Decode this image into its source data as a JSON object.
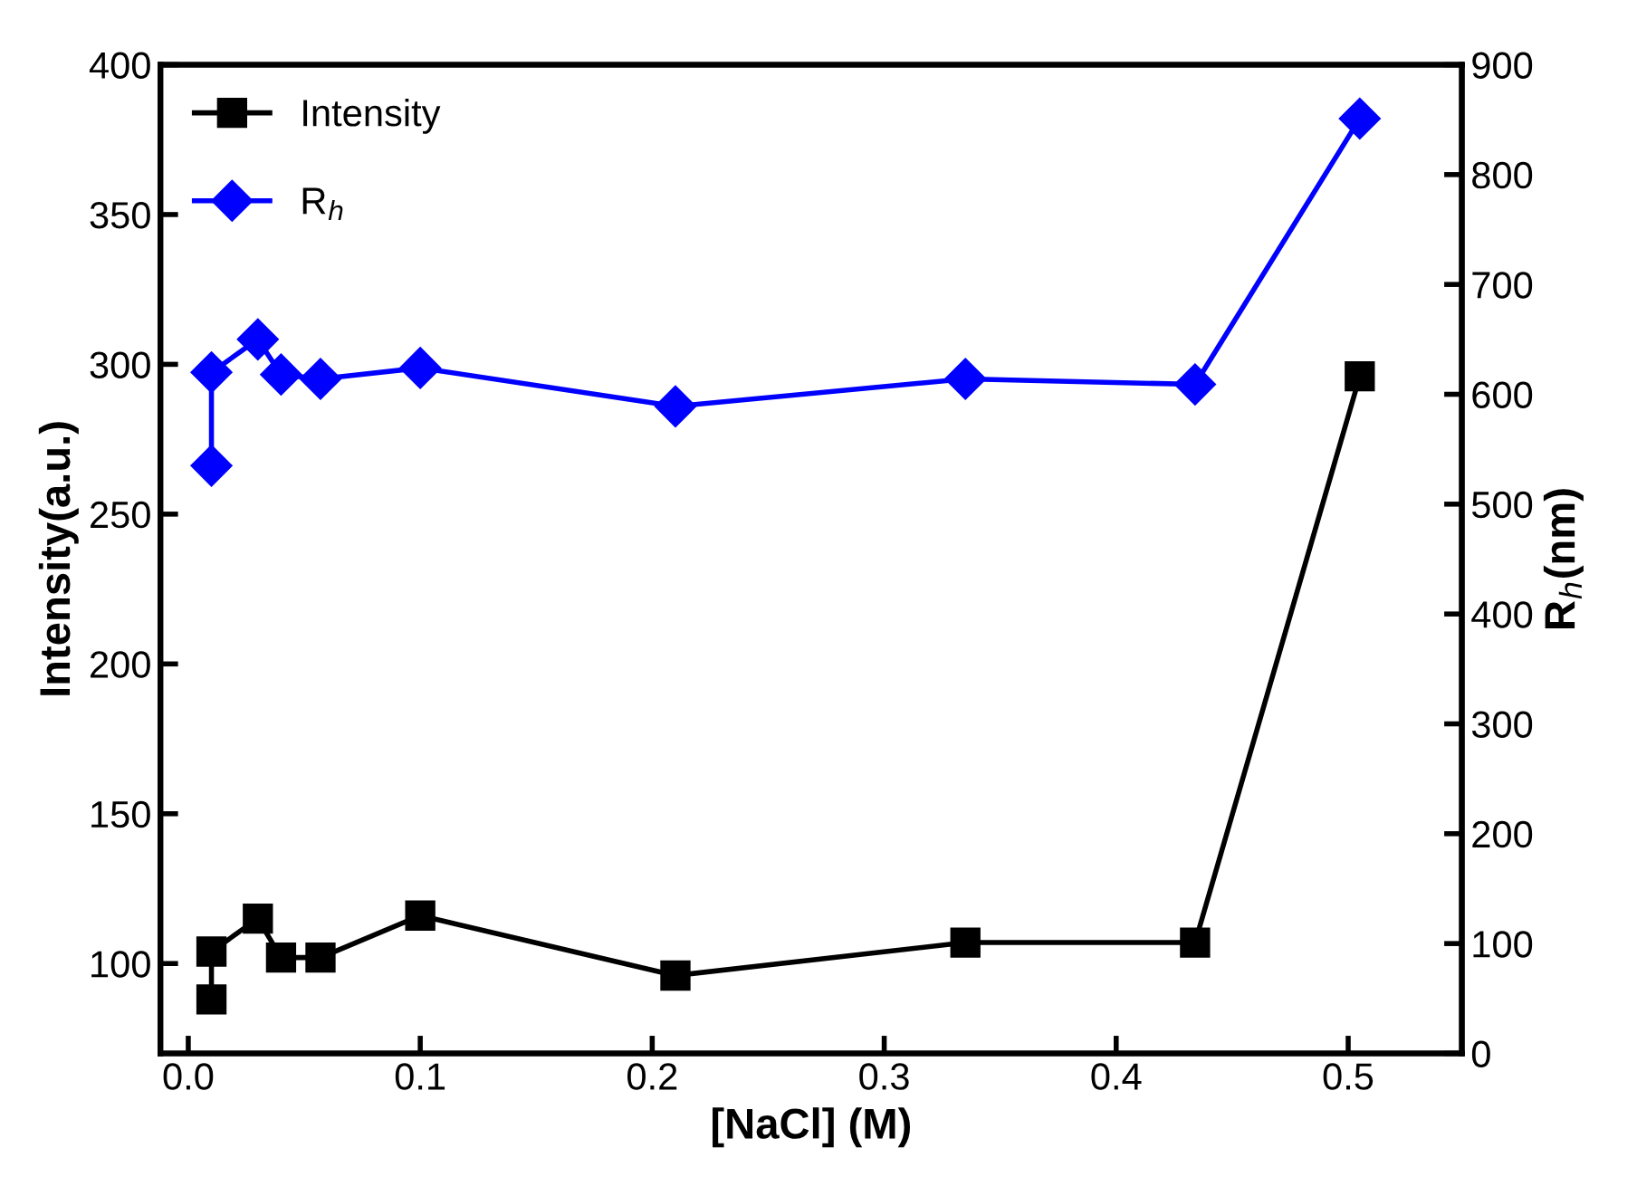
{
  "chart_data": {
    "type": "line",
    "xlabel": "[NaCl] (M)",
    "ylabel": "Intensity(a.u.)",
    "y2label": "R$_{h}$(nm)",
    "xlim": [
      -0.012,
      0.549
    ],
    "xticks": [
      {
        "value": 0,
        "label": "0.0"
      },
      0.1,
      0.2,
      0.3,
      0.4,
      0.5
    ],
    "ylim": [
      70,
      400
    ],
    "yticks": [
      100,
      150,
      200,
      250,
      300,
      350,
      400
    ],
    "y2lim": [
      0,
      900
    ],
    "y2ticks": [
      0,
      100,
      200,
      300,
      400,
      500,
      600,
      700,
      800,
      900
    ],
    "legend": "top left",
    "grid": false,
    "series": [
      {
        "name": "Intensity",
        "color": "#000000",
        "marker": "square",
        "x": [
          0.01,
          0.01,
          0.03,
          0.04,
          0.057,
          0.1,
          0.21,
          0.335,
          0.434,
          0.505
        ],
        "values": [
          88,
          104,
          115,
          102,
          102,
          116,
          96,
          107,
          107,
          296
        ]
      },
      {
        "name": "R$_{h}$",
        "color": "#0000ff",
        "marker": "diamond",
        "axis": "y2",
        "x": [
          0.01,
          0.01,
          0.03,
          0.04,
          0.057,
          0.1,
          0.21,
          0.335,
          0.434,
          0.505
        ],
        "values": [
          535,
          620,
          650,
          618,
          614,
          624,
          589,
          614,
          609,
          851
        ]
      }
    ]
  }
}
